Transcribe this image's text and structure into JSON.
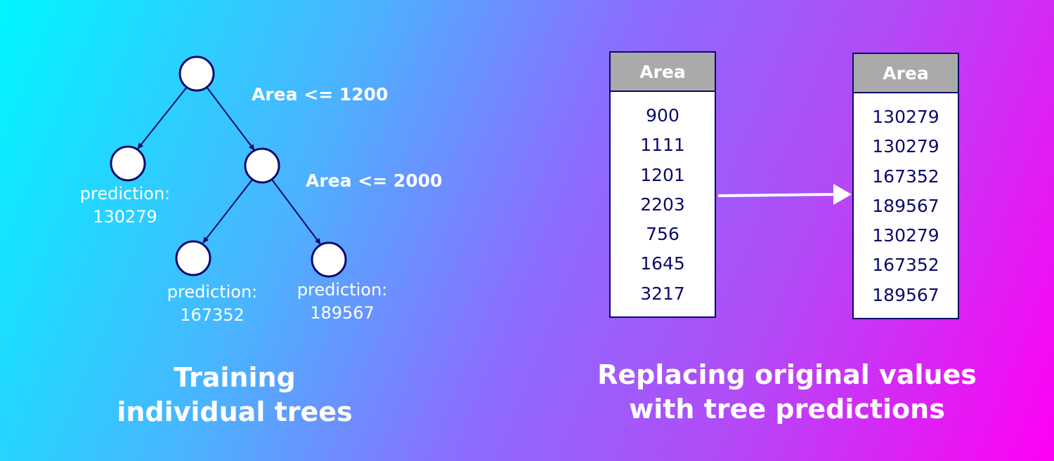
{
  "tree": {
    "splits": [
      "Area <= 1200",
      "Area <= 2000"
    ],
    "leaves": [
      {
        "label": "prediction:",
        "value": "130279"
      },
      {
        "label": "prediction:",
        "value": "167352"
      },
      {
        "label": "prediction:",
        "value": "189567"
      }
    ]
  },
  "left_caption": {
    "line1": "Training",
    "line2": "individual trees"
  },
  "tables": {
    "original": {
      "header": "Area",
      "values": [
        "900",
        "1111",
        "1201",
        "2203",
        "756",
        "1645",
        "3217"
      ]
    },
    "predicted": {
      "header": "Area",
      "values": [
        "130279",
        "130279",
        "167352",
        "189567",
        "130279",
        "167352",
        "189567"
      ]
    }
  },
  "right_caption": {
    "line1": "Replacing original values",
    "line2": "with tree predictions"
  },
  "colors": {
    "node_stroke": "#0b0b6b",
    "table_header": "#aaaaaa",
    "text_dark": "#0b0b6b"
  }
}
